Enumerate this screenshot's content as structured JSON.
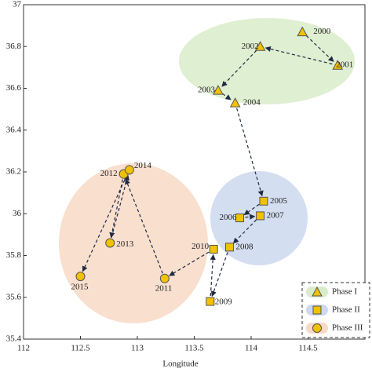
{
  "chart_data": {
    "type": "scatter",
    "xlabel": "Longitude",
    "xlim": [
      112,
      115
    ],
    "xticks": [
      112,
      112.5,
      113,
      113.5,
      114,
      114.5
    ],
    "ylim": [
      35.4,
      37
    ],
    "yticks": [
      35.4,
      35.6,
      35.8,
      36,
      36.2,
      36.4,
      36.6,
      36.8,
      37
    ],
    "legend": "lower right",
    "series": [
      {
        "name": "Phase I",
        "color": "#f2c200",
        "marker": "triangle",
        "region_color": "#d9ecc9",
        "labels": [
          "2000",
          "2001",
          "2002",
          "2003",
          "2004"
        ],
        "x": [
          114.45,
          114.76,
          114.08,
          113.71,
          113.86
        ],
        "values": [
          36.87,
          36.71,
          36.8,
          36.59,
          36.53
        ]
      },
      {
        "name": "Phase II",
        "color": "#f2c200",
        "marker": "square",
        "region_color": "#cdd8ef",
        "labels": [
          "2005",
          "2006",
          "2007",
          "2008",
          "2009",
          "2010"
        ],
        "x": [
          114.11,
          113.9,
          114.08,
          113.81,
          113.64,
          113.67
        ],
        "values": [
          36.06,
          35.98,
          35.99,
          35.84,
          35.58,
          35.83
        ]
      },
      {
        "name": "Phase III",
        "color": "#f2c200",
        "marker": "circle",
        "region_color": "#f7d9c6",
        "labels": [
          "2011",
          "2012",
          "2013",
          "2014",
          "2015"
        ],
        "x": [
          113.24,
          112.88,
          112.76,
          112.93,
          112.5
        ],
        "values": [
          35.69,
          36.19,
          35.86,
          36.21,
          35.7
        ]
      }
    ]
  }
}
